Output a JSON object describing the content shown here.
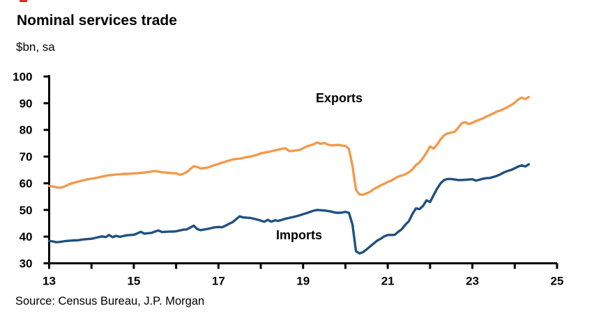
{
  "title": "Nominal services trade",
  "subtitle": "$bn, sa",
  "source": "Source: Census Bureau, J.P. Morgan",
  "colors": {
    "exports_line": "#F4994A",
    "imports_line": "#20507E",
    "axis": "#000000",
    "background": "#FFFFFF",
    "red_mark": "#E8262A"
  },
  "annotations": {
    "exports_label": "Exports",
    "imports_label": "Imports"
  },
  "chart_data": {
    "type": "line",
    "title": "Nominal services trade",
    "ylabel": "$bn, sa",
    "grid": false,
    "legend_position": "inline-annotations",
    "x_unit": "year (monthly data, seasonally adjusted)",
    "x_start_year": 13,
    "x_step_years": 0.0833333,
    "xlim": [
      13,
      25
    ],
    "ylim": [
      30,
      100
    ],
    "y_ticks": [
      30,
      40,
      50,
      60,
      70,
      80,
      90,
      100
    ],
    "x_ticks": [
      13,
      14,
      15,
      16,
      17,
      18,
      19,
      20,
      21,
      22,
      23,
      24,
      25
    ],
    "x_labeled_ticks": [
      13,
      15,
      17,
      19,
      21,
      23,
      25
    ],
    "x_tick_labels": [
      "13",
      "15",
      "17",
      "19",
      "21",
      "23",
      "25"
    ],
    "series": [
      {
        "name": "Exports",
        "color": "#F4994A",
        "values": [
          59.0,
          58.8,
          58.5,
          58.3,
          58.6,
          59.2,
          59.8,
          60.2,
          60.5,
          60.9,
          61.2,
          61.5,
          61.7,
          61.9,
          62.2,
          62.5,
          62.8,
          63.0,
          63.1,
          63.3,
          63.4,
          63.5,
          63.5,
          63.6,
          63.7,
          63.7,
          63.9,
          64.0,
          64.2,
          64.4,
          64.6,
          64.4,
          64.1,
          64.0,
          63.9,
          63.8,
          63.7,
          63.2,
          63.5,
          64.2,
          65.3,
          66.4,
          66.1,
          65.5,
          65.7,
          65.9,
          66.4,
          66.8,
          67.2,
          67.7,
          68.1,
          68.5,
          68.9,
          69.1,
          69.2,
          69.5,
          69.8,
          70.0,
          70.3,
          70.7,
          71.2,
          71.5,
          71.7,
          72.0,
          72.3,
          72.6,
          72.9,
          73.1,
          72.1,
          72.1,
          72.3,
          72.5,
          73.1,
          73.8,
          74.2,
          74.6,
          75.3,
          74.8,
          75.1,
          74.5,
          74.2,
          74.3,
          74.4,
          74.1,
          74.0,
          72.8,
          66.5,
          57.5,
          55.8,
          55.7,
          56.2,
          56.8,
          57.8,
          58.5,
          59.2,
          59.8,
          60.5,
          61.0,
          61.8,
          62.5,
          62.9,
          63.4,
          64.1,
          65.2,
          66.8,
          67.8,
          69.5,
          71.5,
          73.8,
          73.0,
          74.5,
          76.5,
          78.0,
          78.7,
          79.0,
          79.3,
          80.8,
          82.5,
          82.9,
          82.2,
          82.7,
          83.3,
          83.8,
          84.3,
          85.0,
          85.6,
          86.2,
          86.9,
          87.3,
          87.9,
          88.6,
          89.3,
          90.2,
          91.4,
          92.1,
          91.6,
          92.3
        ]
      },
      {
        "name": "Imports",
        "color": "#20507E",
        "values": [
          38.4,
          38.2,
          37.9,
          38.0,
          38.2,
          38.4,
          38.5,
          38.6,
          38.6,
          38.8,
          39.0,
          39.1,
          39.2,
          39.5,
          39.8,
          40.1,
          39.8,
          40.6,
          39.8,
          40.3,
          39.9,
          40.2,
          40.5,
          40.6,
          40.7,
          41.2,
          41.8,
          41.1,
          41.3,
          41.4,
          41.9,
          42.3,
          41.7,
          41.8,
          41.9,
          41.9,
          42.0,
          42.3,
          42.6,
          42.7,
          43.4,
          44.1,
          42.8,
          42.4,
          42.7,
          42.9,
          43.2,
          43.5,
          43.6,
          43.5,
          44.1,
          44.8,
          45.4,
          46.5,
          47.6,
          47.2,
          47.1,
          47.0,
          46.7,
          46.4,
          46.0,
          45.6,
          46.3,
          45.6,
          46.1,
          45.9,
          46.3,
          46.7,
          47.0,
          47.3,
          47.6,
          48.0,
          48.4,
          48.8,
          49.3,
          49.7,
          50.0,
          49.9,
          49.8,
          49.6,
          49.4,
          49.0,
          48.9,
          49.0,
          49.3,
          48.9,
          44.5,
          34.5,
          33.7,
          34.2,
          35.2,
          36.3,
          37.4,
          38.5,
          39.2,
          40.1,
          40.6,
          40.6,
          40.7,
          41.8,
          42.8,
          44.5,
          45.8,
          48.5,
          50.6,
          50.3,
          51.5,
          53.6,
          53.0,
          55.5,
          58.0,
          60.0,
          61.2,
          61.6,
          61.6,
          61.4,
          61.2,
          61.2,
          61.3,
          61.4,
          61.5,
          61.0,
          61.3,
          61.7,
          61.9,
          62.0,
          62.4,
          62.8,
          63.4,
          64.1,
          64.6,
          65.0,
          65.6,
          66.3,
          66.7,
          66.3,
          67.1
        ]
      }
    ]
  }
}
